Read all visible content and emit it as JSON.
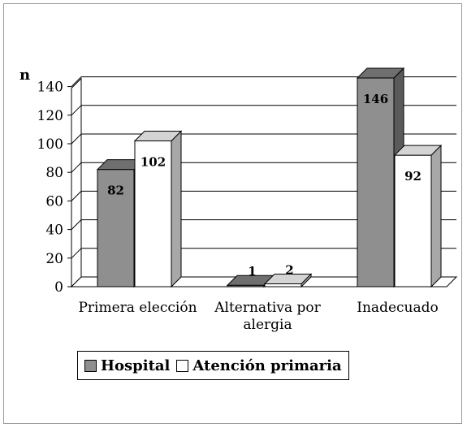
{
  "chart_data": {
    "type": "bar",
    "style": "3d-clustered-column",
    "ylabel": "n",
    "ylim": [
      0,
      140
    ],
    "yticks": [
      "0",
      "20",
      "40",
      "60",
      "80",
      "100",
      "120",
      "140"
    ],
    "ytick_values": [
      0,
      20,
      40,
      60,
      80,
      100,
      120,
      140
    ],
    "grid": true,
    "legend_position": "bottom-left",
    "categories": [
      [
        "Primera elección"
      ],
      [
        "Alternativa por",
        "alergia"
      ],
      [
        "Inadecuado"
      ]
    ],
    "series": [
      {
        "name": "Hospital",
        "values": [
          82,
          1,
          146
        ],
        "labels": [
          "82",
          "1",
          "146"
        ],
        "color": "#8f8f8f",
        "side_color": "#5a5a5a",
        "top_color": "#6f6f6f"
      },
      {
        "name": "Atención primaria",
        "values": [
          102,
          2,
          92
        ],
        "labels": [
          "102",
          "2",
          "92"
        ],
        "color": "#ffffff",
        "side_color": "#a8a8a8",
        "top_color": "#d4d4d4"
      }
    ]
  }
}
